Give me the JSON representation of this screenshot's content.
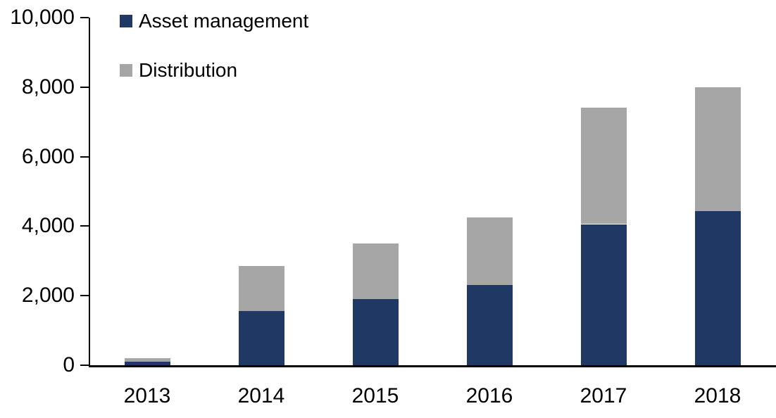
{
  "chart_data": {
    "type": "bar",
    "stacked": true,
    "title": "",
    "categories": [
      "2013",
      "2014",
      "2015",
      "2016",
      "2017",
      "2018"
    ],
    "series": [
      {
        "name": "Asset management",
        "color": "#1F3864",
        "values": [
          100,
          1560,
          1900,
          2320,
          4050,
          4430
        ]
      },
      {
        "name": "Distribution",
        "color": "#A6A6A6",
        "values": [
          110,
          1300,
          1600,
          1940,
          3350,
          3570
        ]
      }
    ],
    "totals": [
      210,
      2860,
      3500,
      4260,
      7400,
      8000
    ],
    "xlabel": "",
    "ylabel": "",
    "ylim": [
      0,
      10000
    ],
    "yticks": [
      0,
      2000,
      4000,
      6000,
      8000,
      10000
    ],
    "ytick_labels": [
      "0",
      "2,000",
      "4,000",
      "6,000",
      "8,000",
      "10,000"
    ],
    "legend_position": "top-left",
    "grid": false,
    "axis_color": "#000000",
    "background_color": "#FFFFFF"
  }
}
